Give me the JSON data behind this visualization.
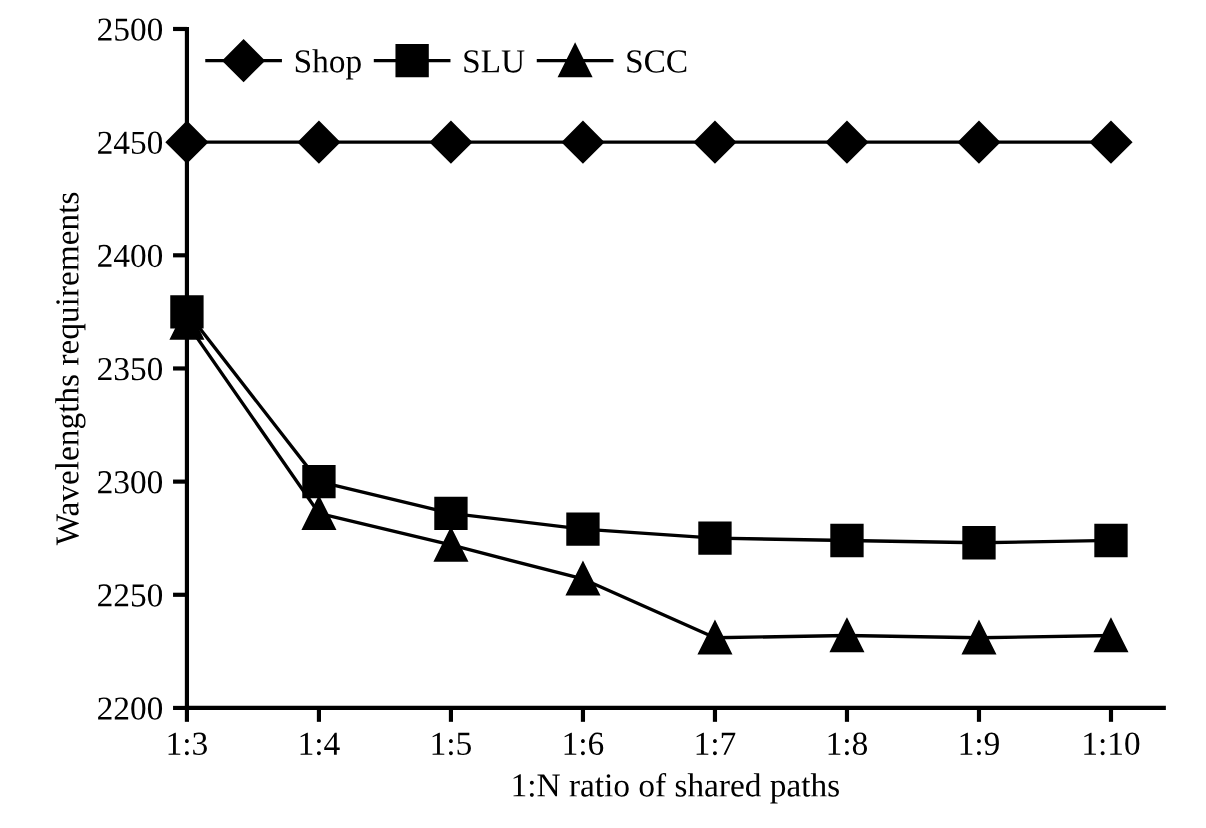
{
  "chart_data": {
    "type": "line",
    "xlabel": "1:N ratio of shared paths",
    "ylabel": "Wavelengths requirements",
    "categories": [
      "1:3",
      "1:4",
      "1:5",
      "1:6",
      "1:7",
      "1:8",
      "1:9",
      "1:10"
    ],
    "series": [
      {
        "name": "Shop",
        "color": "#000000",
        "marker": "diamond",
        "values": [
          2450,
          2450,
          2450,
          2450,
          2450,
          2450,
          2450,
          2450
        ]
      },
      {
        "name": "SLU",
        "color": "#000000",
        "marker": "square",
        "values": [
          2375,
          2300,
          2286,
          2279,
          2275,
          2274,
          2273,
          2274
        ]
      },
      {
        "name": "SCC",
        "color": "#000000",
        "marker": "triangle",
        "values": [
          2370,
          2286,
          2272,
          2257,
          2231,
          2232,
          2231,
          2232
        ]
      }
    ],
    "ylim": [
      2200,
      2500
    ],
    "yticks": [
      2200,
      2250,
      2300,
      2350,
      2400,
      2450,
      2500
    ],
    "grid": false,
    "legend": "top left",
    "line_style": "solid"
  }
}
